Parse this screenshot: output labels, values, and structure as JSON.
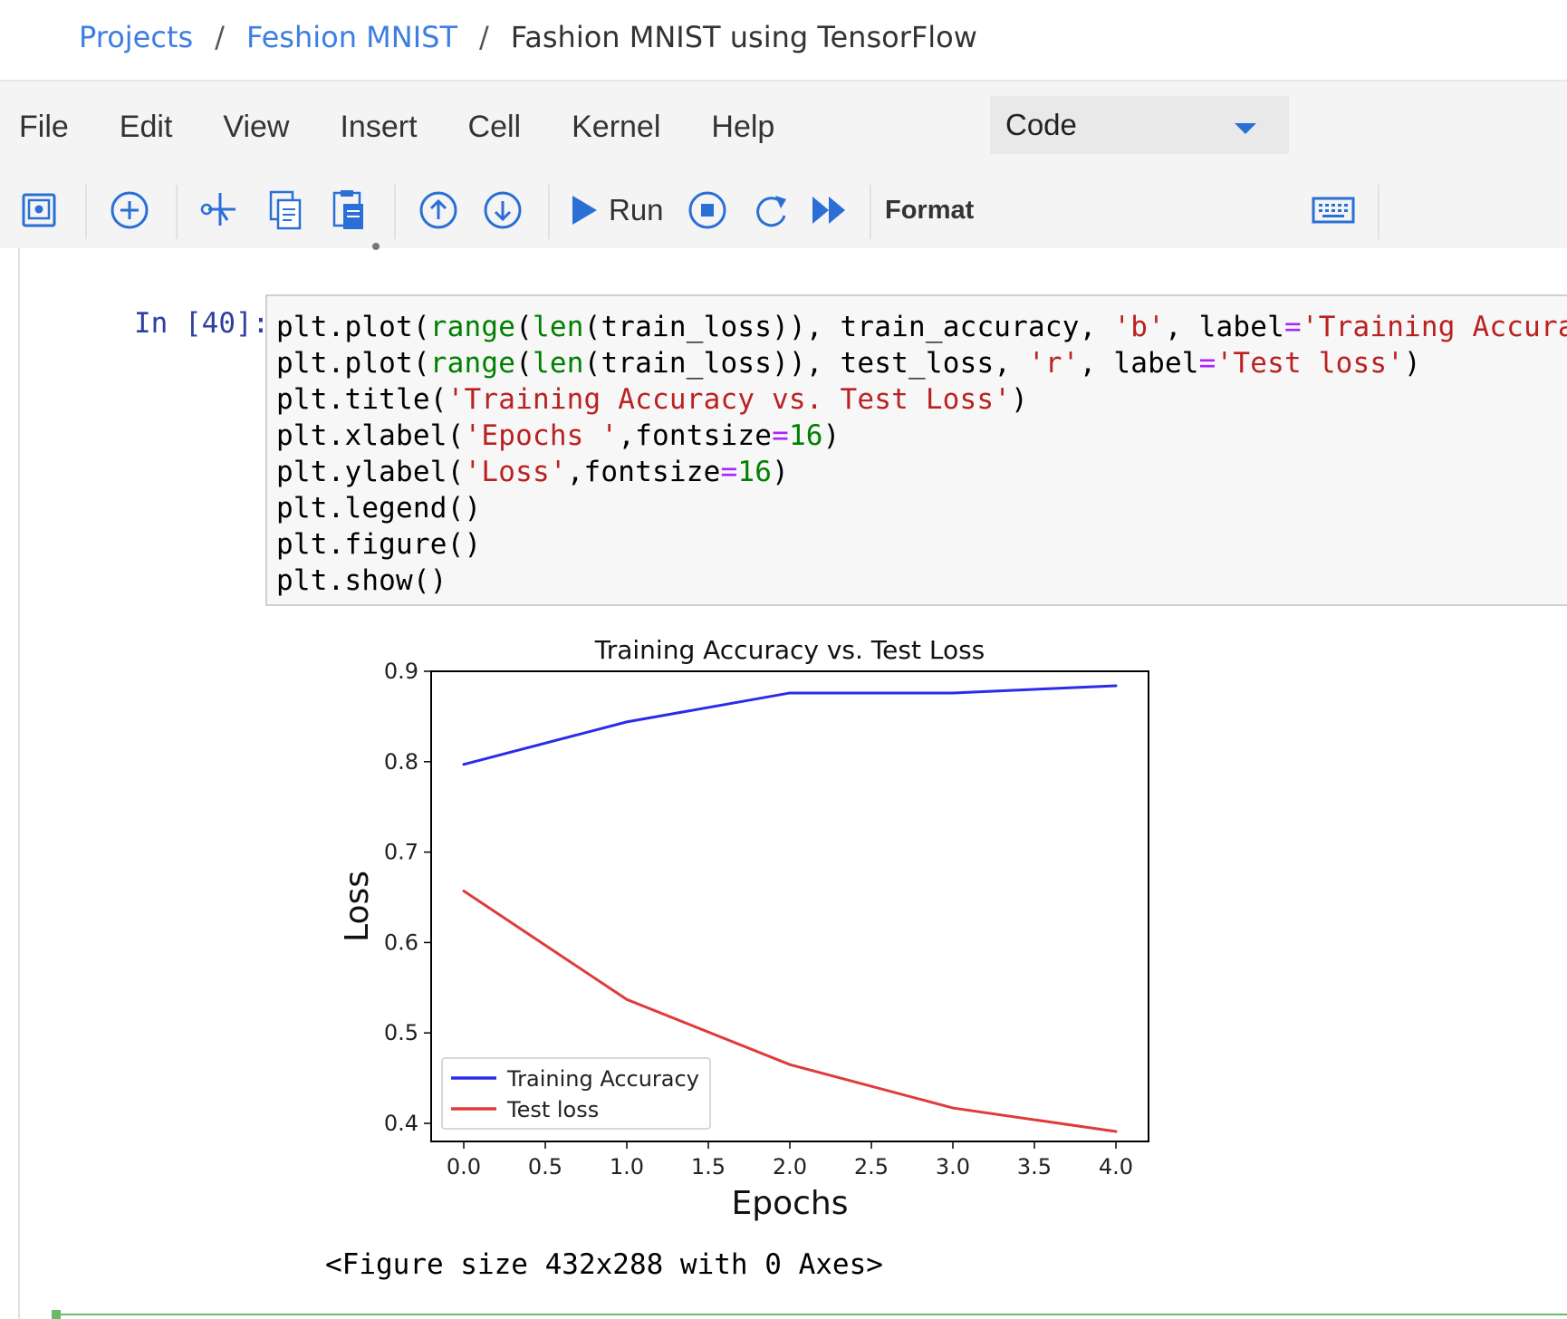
{
  "breadcrumb": {
    "items": [
      "Projects",
      "Feshion MNIST",
      "Fashion MNIST using TensorFlow"
    ],
    "separator": "/"
  },
  "menubar": {
    "items": [
      "File",
      "Edit",
      "View",
      "Insert",
      "Cell",
      "Kernel",
      "Help"
    ]
  },
  "toolbar": {
    "run_label": "Run",
    "format_label": "Format",
    "cell_type": "Code",
    "icons": [
      "save-icon",
      "add-cell-icon",
      "cut-icon",
      "copy-icon",
      "paste-icon",
      "move-up-icon",
      "move-down-icon",
      "run-icon",
      "stop-icon",
      "restart-icon",
      "fast-forward-icon",
      "keyboard-icon"
    ]
  },
  "cell": {
    "prompt": "In [40]:",
    "code_lines": [
      "plt.plot(range(len(train_loss)), train_accuracy, 'b', label='Training Accuracy')",
      "plt.plot(range(len(train_loss)), test_loss, 'r', label='Test loss')",
      "plt.title('Training Accuracy vs. Test Loss')",
      "plt.xlabel('Epochs ',fontsize=16)",
      "plt.ylabel('Loss',fontsize=16)",
      "plt.legend()",
      "plt.figure()",
      "plt.show()"
    ],
    "output_text": "<Figure size 432x288 with 0 Axes>"
  },
  "colors": {
    "link": "#3d7ee0",
    "prompt": "#303f9f",
    "string": "#ba2121",
    "builtin": "#008000",
    "series_blue": "#2b2bea",
    "series_red": "#e03a3a",
    "cell_border_active": "#66bb6a"
  },
  "chart_data": {
    "type": "line",
    "title": "Training Accuracy vs. Test Loss",
    "xlabel": "Epochs",
    "ylabel": "Loss",
    "x": [
      0,
      1,
      2,
      3,
      4
    ],
    "xlim": [
      -0.2,
      4.2
    ],
    "ylim": [
      0.38,
      0.9
    ],
    "xticks": [
      "0.0",
      "0.5",
      "1.0",
      "1.5",
      "2.0",
      "2.5",
      "3.0",
      "3.5",
      "4.0"
    ],
    "yticks": [
      "0.4",
      "0.5",
      "0.6",
      "0.7",
      "0.8",
      "0.9"
    ],
    "legend_position": "lower-left",
    "grid": false,
    "series": [
      {
        "name": "Training Accuracy",
        "color": "#2b2bea",
        "values": [
          0.797,
          0.844,
          0.876,
          0.876,
          0.884
        ]
      },
      {
        "name": "Test loss",
        "color": "#e03a3a",
        "values": [
          0.657,
          0.537,
          0.465,
          0.417,
          0.391
        ]
      }
    ]
  }
}
